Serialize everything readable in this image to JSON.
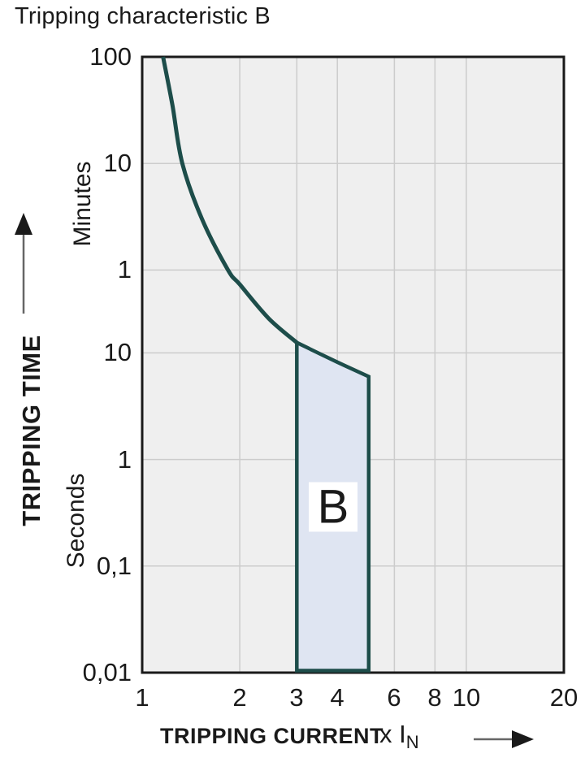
{
  "title": "Tripping characteristic B",
  "y_axis": {
    "title": "TRIPPING TIME",
    "unit_top": "Minutes",
    "unit_bottom": "Seconds",
    "ticks": [
      {
        "label": "100",
        "seconds": 6000
      },
      {
        "label": "10",
        "seconds": 600
      },
      {
        "label": "1",
        "seconds": 60
      },
      {
        "label": "10",
        "seconds": 10
      },
      {
        "label": "1",
        "seconds": 1
      },
      {
        "label": "0,1",
        "seconds": 0.1
      },
      {
        "label": "0,01",
        "seconds": 0.01
      }
    ]
  },
  "x_axis": {
    "title": "TRIPPING CURRENT",
    "multiplier": "x",
    "symbol": "I",
    "symbol_sub": "N",
    "ticks": [
      {
        "label": "1",
        "value": 1
      },
      {
        "label": "2",
        "value": 2
      },
      {
        "label": "3",
        "value": 3
      },
      {
        "label": "4",
        "value": 4
      },
      {
        "label": "6",
        "value": 6
      },
      {
        "label": "8",
        "value": 8
      },
      {
        "label": "10",
        "value": 10
      },
      {
        "label": "20",
        "value": 20
      }
    ]
  },
  "chart_data": {
    "type": "line",
    "title": "Tripping characteristic B",
    "xlabel": "TRIPPING CURRENT x IN",
    "ylabel": "TRIPPING TIME",
    "x_scale": "log",
    "y_scale": "log",
    "x_range": [
      1,
      20
    ],
    "y_range_seconds": [
      0.01,
      6000
    ],
    "grid": true,
    "grid_x_values": [
      2,
      3,
      4,
      6,
      8,
      10
    ],
    "grid_y_seconds": [
      600,
      60,
      10,
      1,
      0.1
    ],
    "curve_points_x_vs_seconds": [
      [
        1.16,
        6000
      ],
      [
        1.24,
        2100
      ],
      [
        1.33,
        600
      ],
      [
        1.53,
        180
      ],
      [
        1.84,
        60
      ],
      [
        2.0,
        44
      ],
      [
        2.46,
        21
      ],
      [
        3.0,
        12.5
      ]
    ],
    "band": {
      "label": "B",
      "x_min": 3,
      "x_max": 5,
      "top_points_x_vs_seconds": [
        [
          3,
          12.5
        ],
        [
          4,
          8.2
        ],
        [
          5,
          6.0
        ]
      ],
      "bottom_seconds": 0.01,
      "label_seconds": 0.36
    },
    "colors": {
      "curve": "#1d4d4a",
      "band_fill": "#dfe5f2",
      "plot_bg": "#efefef",
      "grid": "#cccccc",
      "frame": "#1a1a1a",
      "text": "#1a1a1a"
    }
  }
}
